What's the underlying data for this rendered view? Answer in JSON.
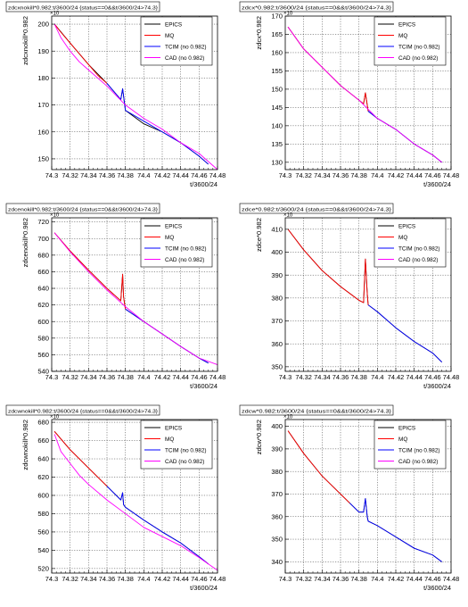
{
  "colors": {
    "EPICS": "#000000",
    "MQ": "#ff0000",
    "TCIM (no 0.982)": "#0000ff",
    "CAD (no 0.982)": "#ff00ff"
  },
  "chart_data": [
    {
      "type": "line",
      "title": "zdcxnokill*0.982:t/3600/24 {status==0&&t/3600/24>74.3}",
      "xlabel": "t/3600/24",
      "ylabel": "zdcxnokill*0.982",
      "exponent": "×10",
      "xlim": [
        74.3,
        74.48
      ],
      "ylim": [
        146,
        203
      ],
      "xticks": [
        74.3,
        74.32,
        74.34,
        74.36,
        74.38,
        74.4,
        74.42,
        74.44,
        74.46,
        74.48
      ],
      "xticklabels": [
        "74.3",
        "74.32",
        "74.34",
        "74.36",
        "74.38",
        "74.4",
        "74.42",
        "74.44",
        "74.46",
        "74.48"
      ],
      "yticks": [
        150,
        160,
        170,
        180,
        190,
        200
      ],
      "yticklabels": [
        "150",
        "160",
        "170",
        "180",
        "190",
        "200"
      ],
      "grid": true,
      "legend": "top-right",
      "series": [
        {
          "name": "EPICS",
          "x": [
            74.303,
            74.32,
            74.34,
            74.36,
            74.37,
            74.375,
            74.377,
            74.38,
            74.4,
            74.42,
            74.44,
            74.46,
            74.47
          ],
          "y": [
            200,
            193,
            185,
            178,
            174,
            172,
            176,
            168,
            163,
            160,
            156,
            151,
            148
          ]
        },
        {
          "name": "MQ",
          "x": [
            74.303,
            74.31,
            74.32,
            74.33,
            74.34,
            74.35,
            74.36
          ],
          "y": [
            200,
            197,
            193,
            189,
            185,
            181,
            178
          ]
        },
        {
          "name": "TCIM (no 0.982)",
          "x": [
            74.36,
            74.37,
            74.375,
            74.377,
            74.38,
            74.4,
            74.42,
            74.44,
            74.46,
            74.47
          ],
          "y": [
            178,
            174,
            172,
            176,
            168,
            164,
            160,
            156,
            151,
            148
          ]
        },
        {
          "name": "CAD (no 0.982)",
          "x": [
            74.303,
            74.31,
            74.32,
            74.33,
            74.34,
            74.36,
            74.38,
            74.4,
            74.42,
            74.44,
            74.46,
            74.48
          ],
          "y": [
            200,
            195,
            190,
            186,
            183,
            177,
            170,
            165,
            161,
            156,
            152,
            146
          ]
        }
      ]
    },
    {
      "type": "line",
      "title": "zdcx*0.982:t/3600/24 {status==0&&t/3600/24>74.3}",
      "xlabel": "t/3600/24",
      "ylabel": "zdcx*0.982",
      "exponent": "×10",
      "xlim": [
        74.3,
        74.48
      ],
      "ylim": [
        128,
        170
      ],
      "xticks": [
        74.3,
        74.32,
        74.34,
        74.36,
        74.38,
        74.4,
        74.42,
        74.44,
        74.46,
        74.48
      ],
      "xticklabels": [
        "74.3",
        "74.32",
        "74.34",
        "74.36",
        "74.38",
        "74.4",
        "74.42",
        "74.44",
        "74.46",
        "74.48"
      ],
      "yticks": [
        130,
        135,
        140,
        145,
        150,
        155,
        160,
        165,
        170
      ],
      "yticklabels": [
        "130",
        "135",
        "140",
        "145",
        "150",
        "155",
        "160",
        "165",
        "170"
      ],
      "grid": true,
      "legend": "top-right",
      "series": [
        {
          "name": "EPICS",
          "x": [
            74.303,
            74.32,
            74.34,
            74.36,
            74.38,
            74.385,
            74.387,
            74.39,
            74.4,
            74.42,
            74.44,
            74.46,
            74.47
          ],
          "y": [
            167,
            161,
            156,
            151,
            147,
            146,
            149,
            144,
            142,
            139,
            135,
            132,
            130
          ]
        },
        {
          "name": "MQ",
          "x": [
            74.303,
            74.32,
            74.34,
            74.36,
            74.38,
            74.385,
            74.387,
            74.39
          ],
          "y": [
            167,
            161,
            156,
            151,
            147,
            146,
            149,
            144
          ]
        },
        {
          "name": "TCIM (no 0.982)",
          "x": [
            74.39,
            74.4,
            74.42,
            74.44,
            74.46,
            74.47
          ],
          "y": [
            144,
            142,
            139,
            135,
            132,
            130
          ]
        },
        {
          "name": "CAD (no 0.982)",
          "x": [
            74.303,
            74.32,
            74.34,
            74.36,
            74.38,
            74.4,
            74.42,
            74.44,
            74.46,
            74.47
          ],
          "y": [
            167,
            161,
            156,
            151,
            147,
            142,
            139,
            135,
            132,
            130
          ]
        }
      ]
    },
    {
      "type": "line",
      "title": "zdcenokill*0.982:t/3600/24 {status==0&&t/3600/24>74.3}",
      "xlabel": "t/3600/24",
      "ylabel": "zdcenokill*0.982",
      "exponent": "×10",
      "xlim": [
        74.3,
        74.48
      ],
      "ylim": [
        540,
        725
      ],
      "xticks": [
        74.3,
        74.32,
        74.34,
        74.36,
        74.38,
        74.4,
        74.42,
        74.44,
        74.46,
        74.48
      ],
      "xticklabels": [
        "74.3",
        "74.32",
        "74.34",
        "74.36",
        "74.38",
        "74.4",
        "74.42",
        "74.44",
        "74.46",
        "74.48"
      ],
      "yticks": [
        540,
        560,
        580,
        600,
        620,
        640,
        660,
        680,
        700,
        720
      ],
      "yticklabels": [
        "540",
        "560",
        "580",
        "600",
        "620",
        "640",
        "660",
        "680",
        "700",
        "720"
      ],
      "grid": true,
      "legend": "top-right",
      "series": [
        {
          "name": "EPICS",
          "x": [
            74.303,
            74.32,
            74.34,
            74.36,
            74.375,
            74.377,
            74.378,
            74.38,
            74.4,
            74.42,
            74.44,
            74.46,
            74.47
          ],
          "y": [
            707,
            685,
            662,
            640,
            625,
            657,
            630,
            615,
            600,
            585,
            570,
            556,
            550
          ]
        },
        {
          "name": "MQ",
          "x": [
            74.303,
            74.32,
            74.34,
            74.36,
            74.375,
            74.377,
            74.378,
            74.38
          ],
          "y": [
            707,
            685,
            662,
            640,
            625,
            657,
            630,
            615
          ]
        },
        {
          "name": "TCIM (no 0.982)",
          "x": [
            74.38,
            74.4,
            74.42,
            74.44,
            74.46,
            74.47
          ],
          "y": [
            615,
            600,
            585,
            570,
            556,
            550
          ]
        },
        {
          "name": "CAD (no 0.982)",
          "x": [
            74.303,
            74.32,
            74.34,
            74.36,
            74.38,
            74.4,
            74.42,
            74.44,
            74.46,
            74.48
          ],
          "y": [
            707,
            684,
            660,
            638,
            618,
            600,
            585,
            570,
            556,
            548
          ]
        }
      ]
    },
    {
      "type": "line",
      "title": "zdce*0.982:t/3600/24 {status==0&&t/3600/24>74.3}",
      "xlabel": "t/3600/24",
      "ylabel": "zdce*0.982",
      "exponent": "×10",
      "xlim": [
        74.3,
        74.48
      ],
      "ylim": [
        348,
        415
      ],
      "xticks": [
        74.3,
        74.32,
        74.34,
        74.36,
        74.38,
        74.4,
        74.42,
        74.44,
        74.46,
        74.48
      ],
      "xticklabels": [
        "74.3",
        "74.32",
        "74.34",
        "74.36",
        "74.38",
        "74.4",
        "74.42",
        "74.44",
        "74.46",
        "74.48"
      ],
      "yticks": [
        350,
        360,
        370,
        380,
        390,
        400,
        410
      ],
      "yticklabels": [
        "350",
        "360",
        "370",
        "380",
        "390",
        "400",
        "410"
      ],
      "grid": true,
      "legend": "top-right",
      "series": [
        {
          "name": "EPICS",
          "x": [
            74.303,
            74.32,
            74.34,
            74.36,
            74.38,
            74.385,
            74.387,
            74.389,
            74.39,
            74.4,
            74.42,
            74.44,
            74.46,
            74.47
          ],
          "y": [
            410,
            401,
            392,
            385,
            379,
            378,
            397,
            382,
            377,
            374,
            367,
            361,
            356,
            352
          ]
        },
        {
          "name": "MQ",
          "x": [
            74.303,
            74.32,
            74.34,
            74.36,
            74.38,
            74.385,
            74.387,
            74.389,
            74.39
          ],
          "y": [
            410,
            401,
            392,
            385,
            379,
            378,
            397,
            382,
            377
          ]
        },
        {
          "name": "TCIM (no 0.982)",
          "x": [
            74.39,
            74.4,
            74.42,
            74.44,
            74.46,
            74.47
          ],
          "y": [
            377,
            374,
            367,
            361,
            356,
            352
          ]
        },
        {
          "name": "CAD (no 0.982)",
          "x": [],
          "y": []
        }
      ]
    },
    {
      "type": "line",
      "title": "zdcwnokill*0.982:t/3600/24 {status==0&&t/3600/24>74.3}",
      "xlabel": "t/3600/24",
      "ylabel": "zdcwnokill*0.982",
      "exponent": "×10",
      "xlim": [
        74.3,
        74.48
      ],
      "ylim": [
        515,
        683
      ],
      "xticks": [
        74.3,
        74.32,
        74.34,
        74.36,
        74.38,
        74.4,
        74.42,
        74.44,
        74.46,
        74.48
      ],
      "xticklabels": [
        "74.3",
        "74.32",
        "74.34",
        "74.36",
        "74.38",
        "74.4",
        "74.42",
        "74.44",
        "74.46",
        "74.48"
      ],
      "yticks": [
        520,
        540,
        560,
        580,
        600,
        620,
        640,
        660,
        680
      ],
      "yticklabels": [
        "520",
        "540",
        "560",
        "580",
        "600",
        "620",
        "640",
        "660",
        "680"
      ],
      "grid": true,
      "legend": "top-right",
      "series": [
        {
          "name": "EPICS",
          "x": [
            74.303,
            74.32,
            74.34,
            74.36,
            74.375,
            74.377,
            74.378,
            74.38,
            74.4,
            74.42,
            74.44,
            74.46,
            74.47
          ],
          "y": [
            670,
            650,
            630,
            610,
            595,
            603,
            590,
            587,
            573,
            560,
            548,
            533,
            525
          ]
        },
        {
          "name": "MQ",
          "x": [
            74.303,
            74.32,
            74.34,
            74.36
          ],
          "y": [
            670,
            650,
            630,
            610
          ]
        },
        {
          "name": "TCIM (no 0.982)",
          "x": [
            74.36,
            74.375,
            74.377,
            74.378,
            74.38,
            74.4,
            74.42,
            74.44,
            74.46,
            74.47
          ],
          "y": [
            610,
            595,
            603,
            590,
            587,
            573,
            560,
            548,
            533,
            525
          ]
        },
        {
          "name": "CAD (no 0.982)",
          "x": [
            74.303,
            74.31,
            74.32,
            74.33,
            74.34,
            74.36,
            74.38,
            74.4,
            74.42,
            74.44,
            74.46,
            74.48
          ],
          "y": [
            667,
            648,
            635,
            622,
            612,
            595,
            580,
            565,
            555,
            545,
            532,
            518
          ]
        }
      ]
    },
    {
      "type": "line",
      "title": "zdcw*0.982:t/3600/24 {status==0&&t/3600/24>74.3}",
      "xlabel": "t/3600/24",
      "ylabel": "zdcw*0.982",
      "exponent": "×10",
      "xlim": [
        74.3,
        74.48
      ],
      "ylim": [
        335,
        403
      ],
      "xticks": [
        74.3,
        74.32,
        74.34,
        74.36,
        74.38,
        74.4,
        74.42,
        74.44,
        74.46,
        74.48
      ],
      "xticklabels": [
        "74.3",
        "74.32",
        "74.34",
        "74.36",
        "74.38",
        "74.4",
        "74.42",
        "74.44",
        "74.46",
        "74.48"
      ],
      "yticks": [
        340,
        350,
        360,
        370,
        380,
        390,
        400
      ],
      "yticklabels": [
        "340",
        "350",
        "360",
        "370",
        "380",
        "390",
        "400"
      ],
      "grid": true,
      "legend": "top-right",
      "series": [
        {
          "name": "EPICS",
          "x": [
            74.303,
            74.32,
            74.34,
            74.36,
            74.37,
            74.38,
            74.385,
            74.387,
            74.389,
            74.39,
            74.4,
            74.42,
            74.44,
            74.46,
            74.47
          ],
          "y": [
            398,
            388,
            378,
            370,
            366,
            362,
            362,
            368,
            360,
            358,
            356,
            351,
            346,
            343,
            340
          ]
        },
        {
          "name": "MQ",
          "x": [
            74.303,
            74.32,
            74.34,
            74.36,
            74.37
          ],
          "y": [
            398,
            388,
            378,
            370,
            366
          ]
        },
        {
          "name": "TCIM (no 0.982)",
          "x": [
            74.37,
            74.38,
            74.385,
            74.387,
            74.389,
            74.39,
            74.4,
            74.42,
            74.44,
            74.46,
            74.47
          ],
          "y": [
            366,
            362,
            362,
            368,
            360,
            358,
            356,
            351,
            346,
            343,
            340
          ]
        },
        {
          "name": "CAD (no 0.982)",
          "x": [],
          "y": []
        }
      ]
    }
  ]
}
